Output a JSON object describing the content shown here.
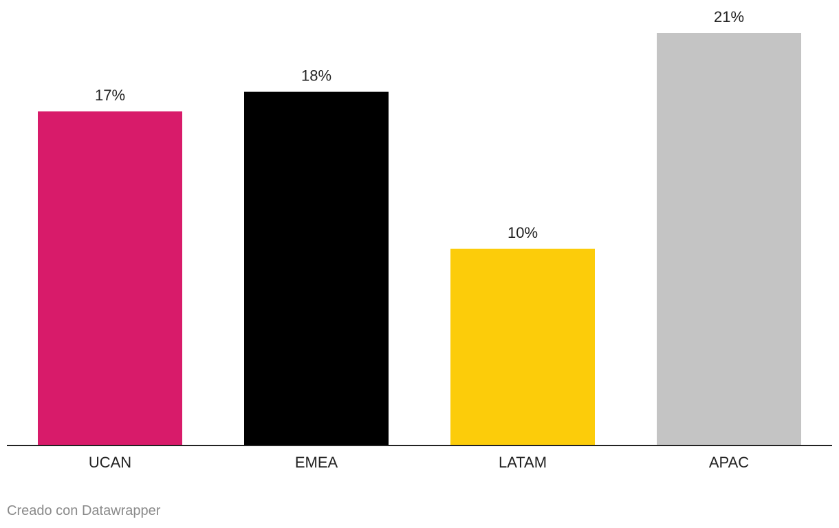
{
  "chart_data": {
    "type": "bar",
    "title": "",
    "xlabel": "",
    "ylabel": "",
    "categories": [
      "UCAN",
      "EMEA",
      "LATAM",
      "APAC"
    ],
    "values": [
      17,
      18,
      10,
      21
    ],
    "value_labels": [
      "17%",
      "18%",
      "10%",
      "21%"
    ],
    "colors": [
      "#d81b6a",
      "#000000",
      "#fccc0a",
      "#c4c4c4"
    ],
    "ylim": [
      0,
      21
    ],
    "grid": false,
    "legend": "none"
  },
  "footer": {
    "credit": "Creado con Datawrapper"
  },
  "style": {
    "axis_color": "#222222",
    "label_color": "#222222",
    "credit_color": "#8a8a8a"
  }
}
